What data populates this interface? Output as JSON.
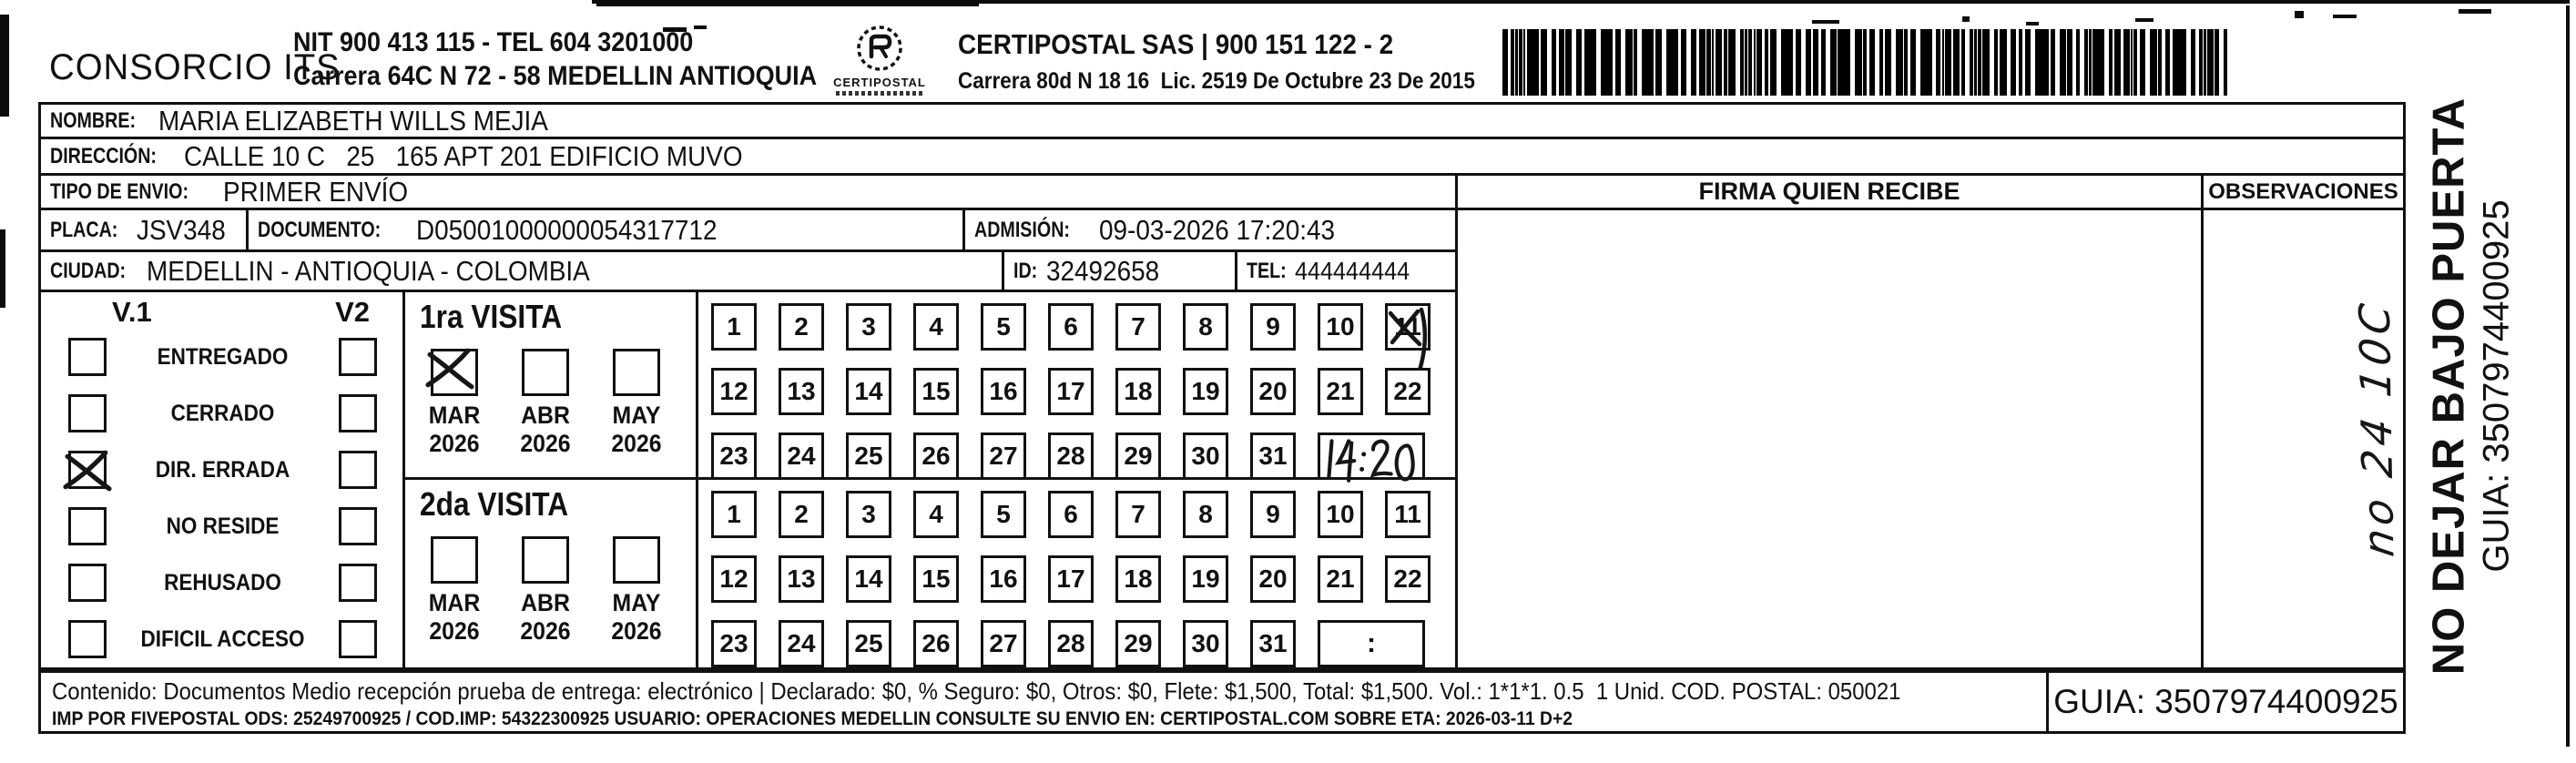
{
  "header": {
    "company": "CONSORCIO ITS",
    "nit_line1": "NIT 900 413 115 - TEL 604 3201000",
    "nit_line2": "Carrera 64C N 72 - 58 MEDELLIN ANTIOQUIA",
    "logo_caption": "CERTIPOSTAL",
    "certipostal_line1": "CERTIPOSTAL SAS | 900 151 122 - 2",
    "certipostal_line2": "Carrera 80d N 18 16  Lic. 2519 De Octubre 23 De 2015"
  },
  "recipient": {
    "nombre_label": "NOMBRE:",
    "nombre": "MARIA ELIZABETH WILLS MEJIA",
    "direccion_label": "DIRECCIÓN:",
    "direccion": "CALLE 10 C   25   165 APT 201 EDIFICIO MUVO",
    "tipo_envio_label": "TIPO DE ENVIO:",
    "tipo_envio": "PRIMER ENVÍO",
    "placa_label": "PLACA:",
    "placa": "JSV348",
    "documento_label": "DOCUMENTO:",
    "documento": "D05001000000054317712",
    "admision_label": "ADMISIÓN:",
    "admision": "09-03-2026 17:20:43",
    "ciudad_label": "CIUDAD:",
    "ciudad": "MEDELLIN - ANTIOQUIA - COLOMBIA",
    "id_label": "ID:",
    "id": "32492658",
    "tel_label": "TEL:",
    "tel": "444444444"
  },
  "status_panel": {
    "v1_header": "V.1",
    "v2_header": "V2",
    "rows": [
      {
        "label": "ENTREGADO",
        "v1": false,
        "v2": false
      },
      {
        "label": "CERRADO",
        "v1": false,
        "v2": false
      },
      {
        "label": "DIR. ERRADA",
        "v1": true,
        "v2": false
      },
      {
        "label": "NO RESIDE",
        "v1": false,
        "v2": false
      },
      {
        "label": "REHUSADO",
        "v1": false,
        "v2": false
      },
      {
        "label": "DIFICIL ACCESO",
        "v1": false,
        "v2": false
      }
    ]
  },
  "visits": {
    "first": {
      "title": "1ra VISITA",
      "months": [
        {
          "name": "MAR",
          "year": "2026",
          "checked": true
        },
        {
          "name": "ABR",
          "year": "2026",
          "checked": false
        },
        {
          "name": "MAY",
          "year": "2026",
          "checked": false
        }
      ],
      "days": [
        1,
        2,
        3,
        4,
        5,
        6,
        7,
        8,
        9,
        10,
        11,
        12,
        13,
        14,
        15,
        16,
        17,
        18,
        19,
        20,
        21,
        22,
        23,
        24,
        25,
        26,
        27,
        28,
        29,
        30,
        31
      ],
      "marked_day": 11,
      "time_handwritten": "14:20"
    },
    "second": {
      "title": "2da VISITA",
      "months": [
        {
          "name": "MAR",
          "year": "2026",
          "checked": false
        },
        {
          "name": "ABR",
          "year": "2026",
          "checked": false
        },
        {
          "name": "MAY",
          "year": "2026",
          "checked": false
        }
      ],
      "days": [
        1,
        2,
        3,
        4,
        5,
        6,
        7,
        8,
        9,
        10,
        11,
        12,
        13,
        14,
        15,
        16,
        17,
        18,
        19,
        20,
        21,
        22,
        23,
        24,
        25,
        26,
        27,
        28,
        29,
        30,
        31
      ],
      "marked_day": null,
      "time_placeholder": ":"
    }
  },
  "columns": {
    "firma_header": "FIRMA QUIEN RECIBE",
    "observaciones_header": "OBSERVACIONES",
    "observaciones_handwritten": "no 24 10C"
  },
  "side_strip": {
    "line1": "NO DEJAR BAJO PUERTA",
    "line2": "GUIA: 3507974400925"
  },
  "footer": {
    "line1": "Contenido: Documentos Medio recepción prueba de entrega: electrónico | Declarado: $0, % Seguro: $0, Otros: $0, Flete: $1,500, Total: $1,500. Vol.: 1*1*1. 0.5  1 Unid. COD. POSTAL: 050021",
    "line2": "IMP POR FIVEPOSTAL ODS: 25249700925 / COD.IMP: 54322300925 USUARIO: OPERACIONES MEDELLIN CONSULTE SU ENVIO EN: CERTIPOSTAL.COM SOBRE ETA: 2026-03-11 D+2",
    "guia": "GUIA: 3507974400925"
  },
  "colors": {
    "ink": "#111111",
    "paper": "#ffffff"
  }
}
